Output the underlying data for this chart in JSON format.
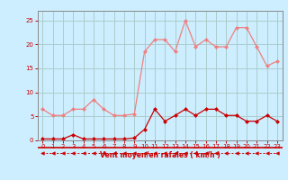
{
  "x": [
    0,
    1,
    2,
    3,
    4,
    5,
    6,
    7,
    8,
    9,
    10,
    11,
    12,
    13,
    14,
    15,
    16,
    17,
    18,
    19,
    20,
    21,
    22,
    23
  ],
  "rafales": [
    6.5,
    5.2,
    5.2,
    6.5,
    6.5,
    8.5,
    6.5,
    5.2,
    5.2,
    5.5,
    18.5,
    21.0,
    21.0,
    18.5,
    25.0,
    19.5,
    21.0,
    19.5,
    19.5,
    23.5,
    23.5,
    19.5,
    15.5,
    16.5
  ],
  "moyen": [
    0.3,
    0.3,
    0.3,
    1.2,
    0.3,
    0.3,
    0.3,
    0.3,
    0.3,
    0.5,
    2.3,
    6.5,
    4.0,
    5.2,
    6.5,
    5.2,
    6.5,
    6.5,
    5.2,
    5.2,
    4.0,
    4.0,
    5.2,
    4.0
  ],
  "color_rafales": "#f08080",
  "color_moyen": "#cc0000",
  "color_dashes": "#cc0000",
  "bg_color": "#cceeff",
  "grid_color": "#aacccc",
  "xlabel": "Vent moyen/en rafales ( km/h )",
  "ylim": [
    0,
    27
  ],
  "xlim": [
    -0.5,
    23.5
  ],
  "yticks": [
    0,
    5,
    10,
    15,
    20,
    25
  ],
  "xticks": [
    0,
    1,
    2,
    3,
    4,
    5,
    6,
    7,
    8,
    9,
    10,
    11,
    12,
    13,
    14,
    15,
    16,
    17,
    18,
    19,
    20,
    21,
    22,
    23
  ]
}
